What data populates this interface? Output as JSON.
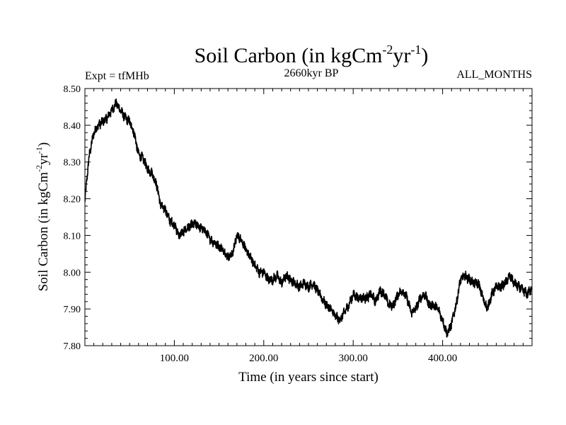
{
  "chart_data": {
    "type": "line",
    "title": "Soil Carbon (in kgCm",
    "title_sup1": "-2",
    "title_mid": "yr",
    "title_sup2": "-1",
    "title_end": ")",
    "subtitle_left": "Expt = tfMHb",
    "subtitle_center": "2660kyr BP",
    "subtitle_right": "ALL_MONTHS",
    "xlabel": "Time (in years since start)",
    "ylabel": "Soil Carbon (in kgCm",
    "ylabel_sup1": "-2",
    "ylabel_mid": "yr",
    "ylabel_sup2": "-1",
    "ylabel_end": ")",
    "xlim": [
      0,
      500
    ],
    "ylim": [
      7.8,
      8.5
    ],
    "x_ticks": [
      100,
      200,
      300,
      400
    ],
    "x_tick_labels": [
      "100.00",
      "200.00",
      "300.00",
      "400.00"
    ],
    "y_ticks": [
      7.8,
      7.9,
      8.0,
      8.1,
      8.2,
      8.3,
      8.4,
      8.5
    ],
    "y_tick_labels": [
      "7.80",
      "7.90",
      "8.00",
      "8.10",
      "8.20",
      "8.30",
      "8.40",
      "8.50"
    ],
    "series": [
      {
        "name": "Soil Carbon",
        "color": "#000000",
        "x": [
          0,
          2,
          5,
          10,
          15,
          20,
          25,
          30,
          35,
          40,
          45,
          50,
          55,
          60,
          65,
          70,
          75,
          80,
          85,
          90,
          95,
          100,
          105,
          110,
          115,
          120,
          125,
          130,
          135,
          140,
          145,
          150,
          155,
          160,
          165,
          170,
          175,
          180,
          185,
          190,
          195,
          200,
          205,
          210,
          215,
          220,
          225,
          230,
          235,
          240,
          245,
          250,
          255,
          260,
          265,
          270,
          275,
          280,
          285,
          290,
          295,
          300,
          305,
          310,
          315,
          320,
          325,
          330,
          335,
          340,
          345,
          350,
          355,
          360,
          365,
          370,
          375,
          380,
          385,
          390,
          395,
          400,
          405,
          410,
          415,
          420,
          425,
          430,
          435,
          440,
          445,
          450,
          455,
          460,
          465,
          470,
          475,
          480,
          485,
          490,
          495,
          500
        ],
        "values": [
          8.19,
          8.25,
          8.32,
          8.38,
          8.4,
          8.41,
          8.42,
          8.44,
          8.46,
          8.44,
          8.42,
          8.41,
          8.38,
          8.32,
          8.31,
          8.28,
          8.27,
          8.24,
          8.18,
          8.17,
          8.14,
          8.13,
          8.1,
          8.11,
          8.12,
          8.13,
          8.13,
          8.12,
          8.11,
          8.09,
          8.08,
          8.07,
          8.06,
          8.04,
          8.05,
          8.1,
          8.09,
          8.06,
          8.04,
          8.02,
          8.0,
          8.0,
          7.98,
          7.98,
          7.99,
          7.97,
          7.99,
          7.98,
          7.97,
          7.96,
          7.97,
          7.96,
          7.97,
          7.95,
          7.93,
          7.91,
          7.9,
          7.88,
          7.87,
          7.89,
          7.91,
          7.94,
          7.93,
          7.93,
          7.93,
          7.94,
          7.92,
          7.95,
          7.94,
          7.91,
          7.91,
          7.94,
          7.95,
          7.93,
          7.89,
          7.9,
          7.93,
          7.94,
          7.91,
          7.91,
          7.9,
          7.87,
          7.83,
          7.86,
          7.91,
          7.98,
          7.99,
          7.98,
          7.97,
          7.97,
          7.93,
          7.9,
          7.94,
          7.96,
          7.96,
          7.97,
          7.99,
          7.97,
          7.96,
          7.95,
          7.94,
          7.96
        ]
      }
    ]
  }
}
